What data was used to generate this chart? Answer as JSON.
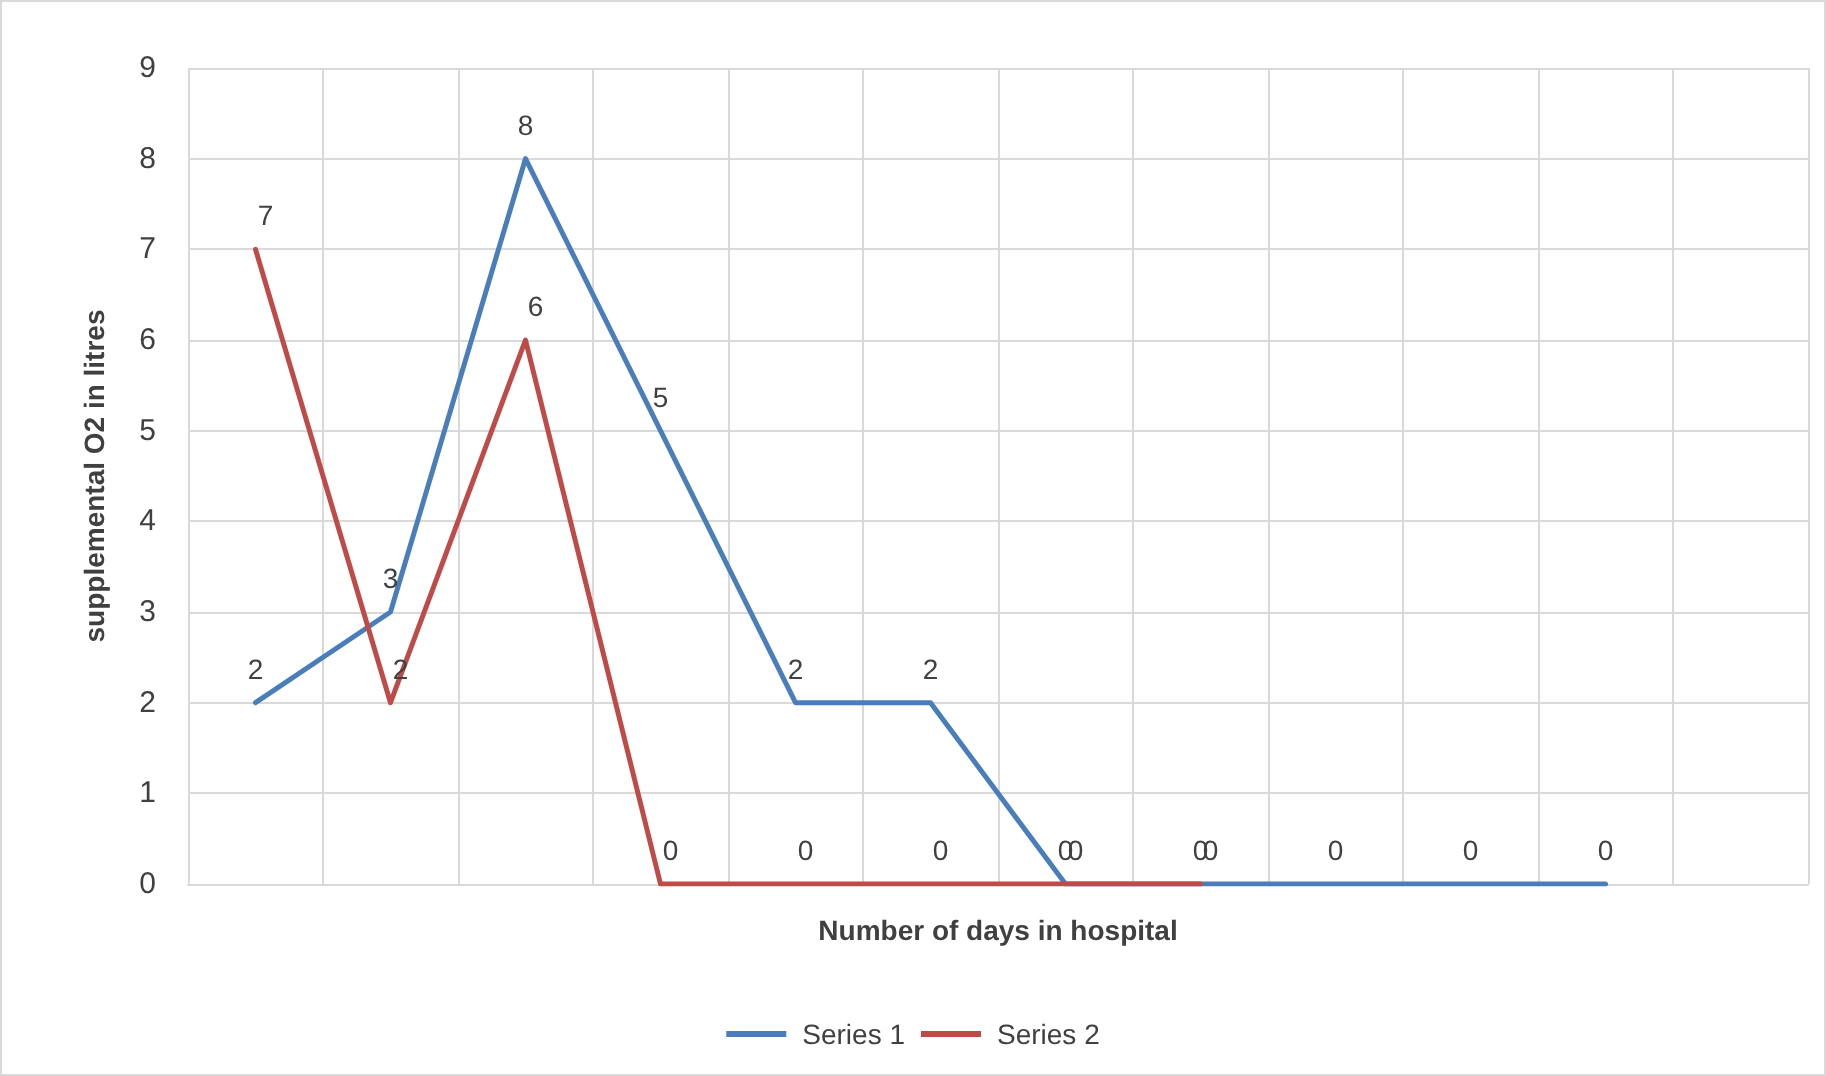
{
  "chart_data": {
    "type": "line",
    "xlabel": "Number of days in hospital",
    "ylabel": "supplemental O2 in litres",
    "categories": [
      null,
      null,
      null,
      null,
      null,
      null,
      null,
      null,
      null,
      null,
      null,
      null
    ],
    "series": [
      {
        "name": "Series 1",
        "color": "#4a7ebb",
        "values": [
          2,
          3,
          8,
          5,
          2,
          2,
          0,
          0,
          0,
          0,
          0,
          null
        ]
      },
      {
        "name": "Series 2",
        "color": "#be4b48",
        "values": [
          7,
          2,
          6,
          0,
          0,
          0,
          0,
          0,
          null,
          null,
          null,
          null
        ]
      }
    ],
    "ylim": [
      0,
      9
    ],
    "yticks": [
      0,
      1,
      2,
      3,
      4,
      5,
      6,
      7,
      8,
      9
    ],
    "grid": true,
    "legend": "bottom",
    "tick_labels": "y",
    "data_labels": true,
    "marker": "none",
    "line_style": "solid"
  }
}
